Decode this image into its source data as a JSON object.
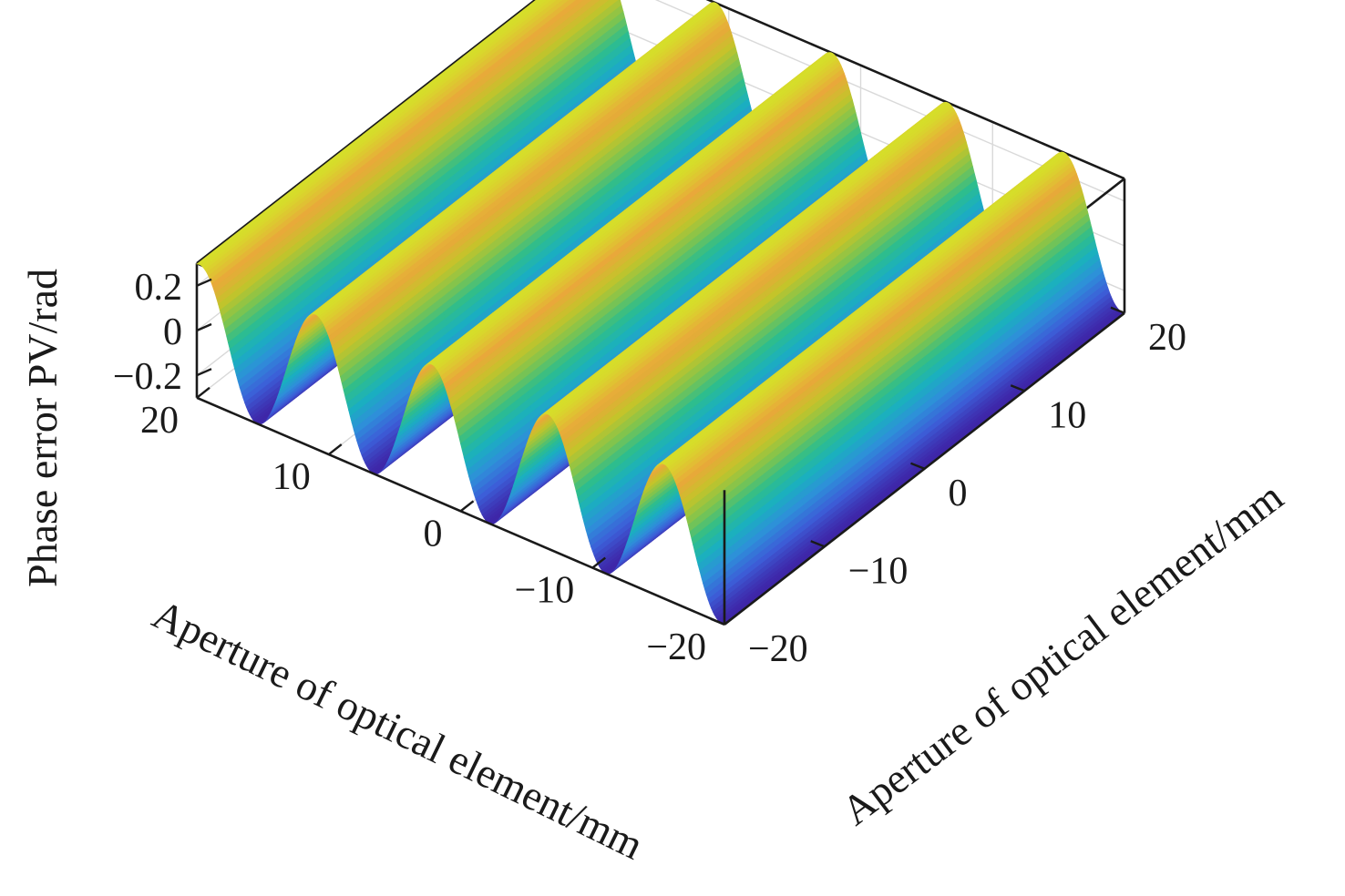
{
  "chart_data": {
    "type": "surface",
    "title": "",
    "x_axis": {
      "label": "Aperture of optical element/mm",
      "range": [
        -20,
        20
      ],
      "ticks": [
        20,
        10,
        0,
        -10,
        -20
      ],
      "tick_labels": [
        "20",
        "10",
        "0",
        "−10",
        "−20"
      ]
    },
    "y_axis": {
      "label": "Aperture of optical element/mm",
      "range": [
        -20,
        20
      ],
      "ticks": [
        -20,
        -10,
        0,
        10,
        20
      ],
      "tick_labels": [
        "−20",
        "−10",
        "0",
        "10",
        "20"
      ]
    },
    "z_axis": {
      "label": "Phase error PV/rad",
      "range": [
        -0.3,
        0.3
      ],
      "ticks": [
        -0.2,
        0,
        0.2
      ],
      "tick_labels": [
        "−0.2",
        "0",
        "0.2"
      ]
    },
    "surface": {
      "description_of_function": "z = A * sin(2*pi*x/period + phase), constant along y",
      "amplitude": 0.3,
      "period_mm": 8.8,
      "phase_rad": 0,
      "visible_ridges": 5
    },
    "colormap": [
      "#3e26a8",
      "#3c5ed8",
      "#2e8fd9",
      "#1aafc0",
      "#2ebd8c",
      "#7fc44e",
      "#c4c42a",
      "#e9a83a",
      "#d6de2a"
    ],
    "grid": true
  }
}
